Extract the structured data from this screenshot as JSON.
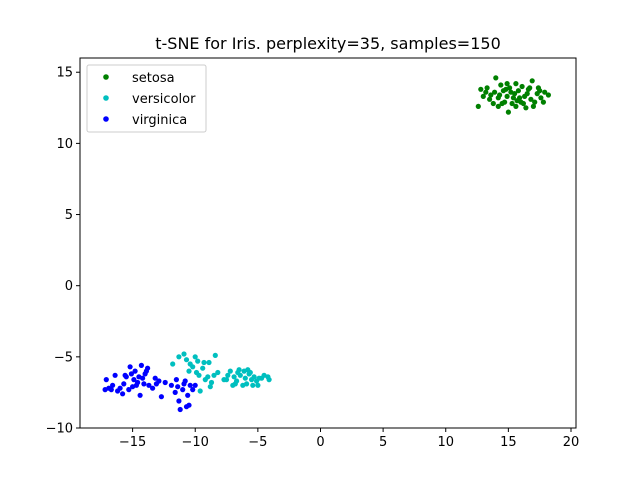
{
  "chart_data": {
    "type": "scatter",
    "title": "t-SNE for Iris. perplexity=35, samples=150",
    "xlabel": "",
    "ylabel": "",
    "xlim": [
      -19.2,
      20.4
    ],
    "ylim": [
      -10,
      16
    ],
    "xticks": [
      -15,
      -10,
      -5,
      0,
      5,
      10,
      15,
      20
    ],
    "yticks": [
      -10,
      -5,
      0,
      5,
      10,
      15
    ],
    "xtick_labels": [
      "−15",
      "−10",
      "−5",
      "0",
      "5",
      "10",
      "15",
      "20"
    ],
    "ytick_labels": [
      "−10",
      "−5",
      "0",
      "5",
      "10",
      "15"
    ],
    "grid": false,
    "legend": "top-left",
    "series": [
      {
        "name": "setosa",
        "color": "#008000",
        "points": [
          [
            12.6,
            12.6
          ],
          [
            12.8,
            13.8
          ],
          [
            13.0,
            13.3
          ],
          [
            13.3,
            13.9
          ],
          [
            13.6,
            13.4
          ],
          [
            13.8,
            12.8
          ],
          [
            13.9,
            13.6
          ],
          [
            14.0,
            14.6
          ],
          [
            14.2,
            13.2
          ],
          [
            14.2,
            12.6
          ],
          [
            14.4,
            14.1
          ],
          [
            14.6,
            13.7
          ],
          [
            14.7,
            12.9
          ],
          [
            14.9,
            13.3
          ],
          [
            15.0,
            12.2
          ],
          [
            15.1,
            13.9
          ],
          [
            15.3,
            12.8
          ],
          [
            15.5,
            13.5
          ],
          [
            15.6,
            14.2
          ],
          [
            15.7,
            13.0
          ],
          [
            15.8,
            13.7
          ],
          [
            16.0,
            12.9
          ],
          [
            16.1,
            14.0
          ],
          [
            16.3,
            13.3
          ],
          [
            16.4,
            12.5
          ],
          [
            16.6,
            13.8
          ],
          [
            16.8,
            13.1
          ],
          [
            16.9,
            14.4
          ],
          [
            17.1,
            12.9
          ],
          [
            17.3,
            13.5
          ],
          [
            17.4,
            13.9
          ],
          [
            17.6,
            13.2
          ],
          [
            17.8,
            12.9
          ],
          [
            17.9,
            13.6
          ],
          [
            18.2,
            13.4
          ],
          [
            13.5,
            13.1
          ],
          [
            14.8,
            13.8
          ],
          [
            15.4,
            13.2
          ],
          [
            16.5,
            13.5
          ],
          [
            17.0,
            12.6
          ],
          [
            14.3,
            13.4
          ],
          [
            15.9,
            13.2
          ],
          [
            16.7,
            13.9
          ],
          [
            13.2,
            13.6
          ],
          [
            14.5,
            12.8
          ],
          [
            15.2,
            13.6
          ],
          [
            16.2,
            12.8
          ],
          [
            17.5,
            13.7
          ],
          [
            14.9,
            14.2
          ],
          [
            15.6,
            12.6
          ]
        ]
      },
      {
        "name": "versicolor",
        "color": "#00bfbf",
        "points": [
          [
            -11.8,
            -5.5
          ],
          [
            -11.3,
            -5.0
          ],
          [
            -10.9,
            -4.8
          ],
          [
            -10.7,
            -5.2
          ],
          [
            -10.5,
            -6.0
          ],
          [
            -10.2,
            -5.7
          ],
          [
            -10.0,
            -5.0
          ],
          [
            -9.8,
            -5.3
          ],
          [
            -9.7,
            -6.3
          ],
          [
            -9.6,
            -7.4
          ],
          [
            -9.4,
            -5.8
          ],
          [
            -9.2,
            -6.6
          ],
          [
            -9.0,
            -6.4
          ],
          [
            -8.9,
            -5.4
          ],
          [
            -8.7,
            -6.8
          ],
          [
            -8.5,
            -6.3
          ],
          [
            -8.4,
            -4.9
          ],
          [
            -7.7,
            -6.6
          ],
          [
            -7.4,
            -6.3
          ],
          [
            -7.2,
            -6.0
          ],
          [
            -7.0,
            -7.0
          ],
          [
            -6.9,
            -6.4
          ],
          [
            -6.7,
            -6.7
          ],
          [
            -6.5,
            -5.9
          ],
          [
            -6.4,
            -6.3
          ],
          [
            -6.2,
            -7.0
          ],
          [
            -6.0,
            -6.5
          ],
          [
            -5.9,
            -6.9
          ],
          [
            -5.7,
            -6.2
          ],
          [
            -5.5,
            -6.6
          ],
          [
            -5.4,
            -7.0
          ],
          [
            -5.3,
            -6.4
          ],
          [
            -5.1,
            -6.7
          ],
          [
            -5.0,
            -7.0
          ],
          [
            -4.9,
            -6.5
          ],
          [
            -4.7,
            -6.5
          ],
          [
            -4.5,
            -6.3
          ],
          [
            -4.2,
            -6.4
          ],
          [
            -4.1,
            -6.6
          ],
          [
            -5.8,
            -5.9
          ],
          [
            -6.6,
            -6.1
          ],
          [
            -8.2,
            -6.1
          ],
          [
            -9.9,
            -6.1
          ],
          [
            -10.4,
            -5.5
          ],
          [
            -7.5,
            -6.6
          ],
          [
            -6.1,
            -6.0
          ],
          [
            -9.3,
            -5.4
          ],
          [
            -8.8,
            -7.1
          ],
          [
            -5.6,
            -6.1
          ],
          [
            -6.8,
            -6.9
          ]
        ]
      },
      {
        "name": "virginica",
        "color": "#0000ff",
        "points": [
          [
            -17.2,
            -7.3
          ],
          [
            -17.1,
            -6.6
          ],
          [
            -16.9,
            -7.2
          ],
          [
            -16.6,
            -7.0
          ],
          [
            -16.4,
            -6.3
          ],
          [
            -16.2,
            -7.4
          ],
          [
            -16.0,
            -7.2
          ],
          [
            -15.8,
            -7.6
          ],
          [
            -15.7,
            -6.9
          ],
          [
            -15.5,
            -6.4
          ],
          [
            -15.3,
            -7.3
          ],
          [
            -15.2,
            -5.7
          ],
          [
            -15.1,
            -6.2
          ],
          [
            -14.9,
            -6.6
          ],
          [
            -14.8,
            -6.0
          ],
          [
            -14.6,
            -6.8
          ],
          [
            -14.5,
            -6.4
          ],
          [
            -14.4,
            -7.7
          ],
          [
            -14.3,
            -5.6
          ],
          [
            -14.1,
            -6.9
          ],
          [
            -14.0,
            -6.2
          ],
          [
            -13.8,
            -5.8
          ],
          [
            -13.7,
            -7.0
          ],
          [
            -13.4,
            -7.2
          ],
          [
            -13.2,
            -6.5
          ],
          [
            -13.1,
            -6.9
          ],
          [
            -12.7,
            -7.8
          ],
          [
            -12.4,
            -6.8
          ],
          [
            -11.9,
            -7.0
          ],
          [
            -11.6,
            -7.5
          ],
          [
            -11.5,
            -6.6
          ],
          [
            -11.3,
            -8.1
          ],
          [
            -11.2,
            -8.7
          ],
          [
            -11.0,
            -7.3
          ],
          [
            -10.9,
            -6.9
          ],
          [
            -10.7,
            -8.5
          ],
          [
            -10.5,
            -8.4
          ],
          [
            -10.4,
            -7.0
          ],
          [
            -10.2,
            -7.3
          ],
          [
            -10.0,
            -7.0
          ],
          [
            -15.6,
            -6.3
          ],
          [
            -14.7,
            -7.0
          ],
          [
            -13.9,
            -6.0
          ],
          [
            -16.7,
            -7.3
          ],
          [
            -12.9,
            -6.7
          ],
          [
            -11.4,
            -7.1
          ],
          [
            -10.6,
            -7.7
          ],
          [
            -14.2,
            -6.5
          ],
          [
            -15.0,
            -7.1
          ],
          [
            -10.8,
            -6.7
          ]
        ]
      }
    ]
  }
}
